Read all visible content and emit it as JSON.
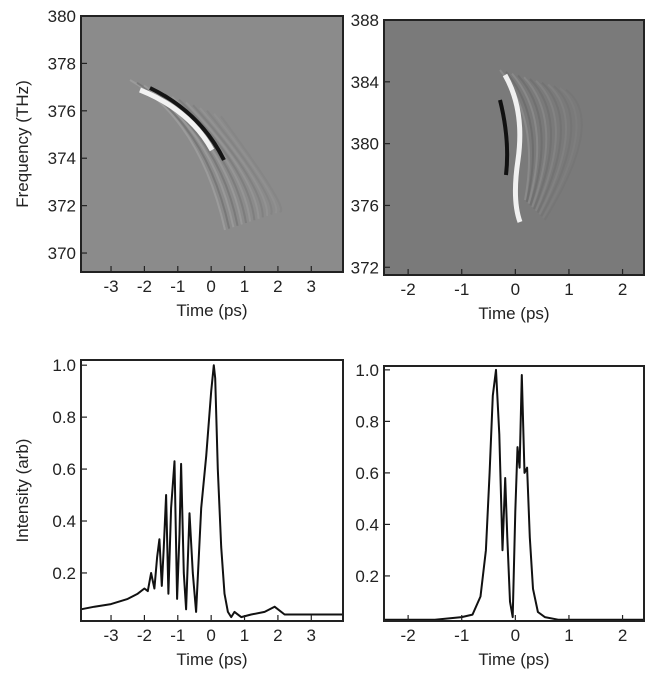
{
  "chart_data": [
    {
      "type": "image",
      "xlabel": "Time (ps)",
      "ylabel": "Frequency (THz)",
      "xlim": [
        -3.9,
        3.95
      ],
      "ylim": [
        369.2,
        380
      ],
      "xticks": [
        -3,
        -2,
        -1,
        0,
        1,
        2,
        3
      ],
      "yticks": [
        370,
        372,
        374,
        376,
        378,
        380
      ]
    },
    {
      "type": "image",
      "xlabel": "Time (ps)",
      "xlim": [
        -2.45,
        2.4
      ],
      "ylim": [
        371.5,
        388
      ],
      "xticks": [
        -2,
        -1,
        0,
        1,
        2
      ],
      "yticks": [
        372,
        376,
        380,
        384,
        388
      ]
    },
    {
      "type": "line",
      "xlabel": "Time (ps)",
      "ylabel": "Intensity (arb)",
      "xlim": [
        -3.9,
        3.95
      ],
      "ylim": [
        0.015,
        1.02
      ],
      "xticks": [
        -3,
        -2,
        -1,
        0,
        1,
        2,
        3
      ],
      "yticks": [
        0.2,
        0.4,
        0.6,
        0.8,
        {
          "value": 1,
          "label": "1.0"
        }
      ],
      "color": "#111",
      "x": [
        -3.9,
        -3.5,
        -3,
        -2.5,
        -2.2,
        -2,
        -1.9,
        -1.8,
        -1.7,
        -1.62,
        -1.55,
        -1.48,
        -1.42,
        -1.35,
        -1.28,
        -1.2,
        -1.1,
        -1.02,
        -0.95,
        -0.9,
        -0.82,
        -0.75,
        -0.65,
        -0.55,
        -0.45,
        -0.3,
        -0.15,
        0,
        0.08,
        0.12,
        0.2,
        0.3,
        0.4,
        0.5,
        0.6,
        0.7,
        0.9,
        1.2,
        1.6,
        1.9,
        2.2,
        2.6,
        3.2,
        3.95
      ],
      "values": [
        0.06,
        0.07,
        0.08,
        0.1,
        0.12,
        0.14,
        0.13,
        0.2,
        0.14,
        0.26,
        0.33,
        0.15,
        0.3,
        0.5,
        0.12,
        0.45,
        0.63,
        0.1,
        0.35,
        0.62,
        0.2,
        0.06,
        0.43,
        0.2,
        0.05,
        0.45,
        0.65,
        0.9,
        1.0,
        0.95,
        0.6,
        0.3,
        0.12,
        0.05,
        0.03,
        0.05,
        0.03,
        0.04,
        0.05,
        0.07,
        0.04,
        0.04,
        0.04,
        0.04
      ]
    },
    {
      "type": "line",
      "xlabel": "Time (ps)",
      "xlim": [
        -2.45,
        2.4
      ],
      "ylim": [
        0.025,
        1.015
      ],
      "xticks": [
        -2,
        -1,
        0,
        1,
        2
      ],
      "yticks": [
        0.2,
        0.4,
        0.6,
        0.8,
        {
          "value": 1,
          "label": "1.0"
        }
      ],
      "color": "#111",
      "x": [
        -2.45,
        -1.5,
        -1,
        -0.8,
        -0.65,
        -0.55,
        -0.48,
        -0.42,
        -0.36,
        -0.3,
        -0.24,
        -0.19,
        -0.15,
        -0.1,
        -0.05,
        0,
        0.04,
        0.08,
        0.12,
        0.17,
        0.22,
        0.27,
        0.33,
        0.42,
        0.55,
        0.8,
        1.2,
        2.4
      ],
      "values": [
        0.03,
        0.03,
        0.04,
        0.05,
        0.12,
        0.3,
        0.6,
        0.9,
        1.0,
        0.75,
        0.3,
        0.58,
        0.35,
        0.1,
        0.04,
        0.45,
        0.7,
        0.62,
        0.98,
        0.6,
        0.62,
        0.35,
        0.15,
        0.06,
        0.04,
        0.03,
        0.03,
        0.03
      ]
    }
  ]
}
